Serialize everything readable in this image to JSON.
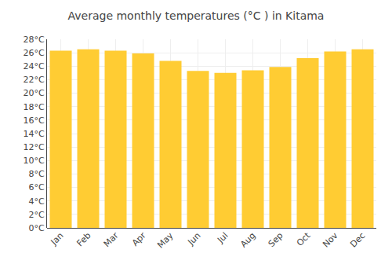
{
  "chart_data": {
    "type": "bar",
    "title": "Average monthly temperatures (°C ) in Kitama",
    "categories": [
      "Jan",
      "Feb",
      "Mar",
      "Apr",
      "May",
      "Jun",
      "Jul",
      "Aug",
      "Sep",
      "Oct",
      "Nov",
      "Dec"
    ],
    "values": [
      26.3,
      26.5,
      26.3,
      25.9,
      24.8,
      23.3,
      23.0,
      23.4,
      23.9,
      25.2,
      26.2,
      26.5
    ],
    "color": "#FFCC33",
    "ylim": [
      0,
      28
    ],
    "yticks": [
      {
        "value": 0,
        "label": "0°C"
      },
      {
        "value": 2,
        "label": "2°C"
      },
      {
        "value": 4,
        "label": "4°C"
      },
      {
        "value": 6,
        "label": "6°C"
      },
      {
        "value": 8,
        "label": "8°C"
      },
      {
        "value": 10,
        "label": "10°C"
      },
      {
        "value": 12,
        "label": "12°C"
      },
      {
        "value": 14,
        "label": "14°C"
      },
      {
        "value": 16,
        "label": "16°C"
      },
      {
        "value": 18,
        "label": "18°C"
      },
      {
        "value": 20,
        "label": "20°C"
      },
      {
        "value": 22,
        "label": "22°C"
      },
      {
        "value": 24,
        "label": "24°C"
      },
      {
        "value": 26,
        "label": "26°C"
      },
      {
        "value": 28,
        "label": "28°C"
      }
    ],
    "grid": true
  }
}
